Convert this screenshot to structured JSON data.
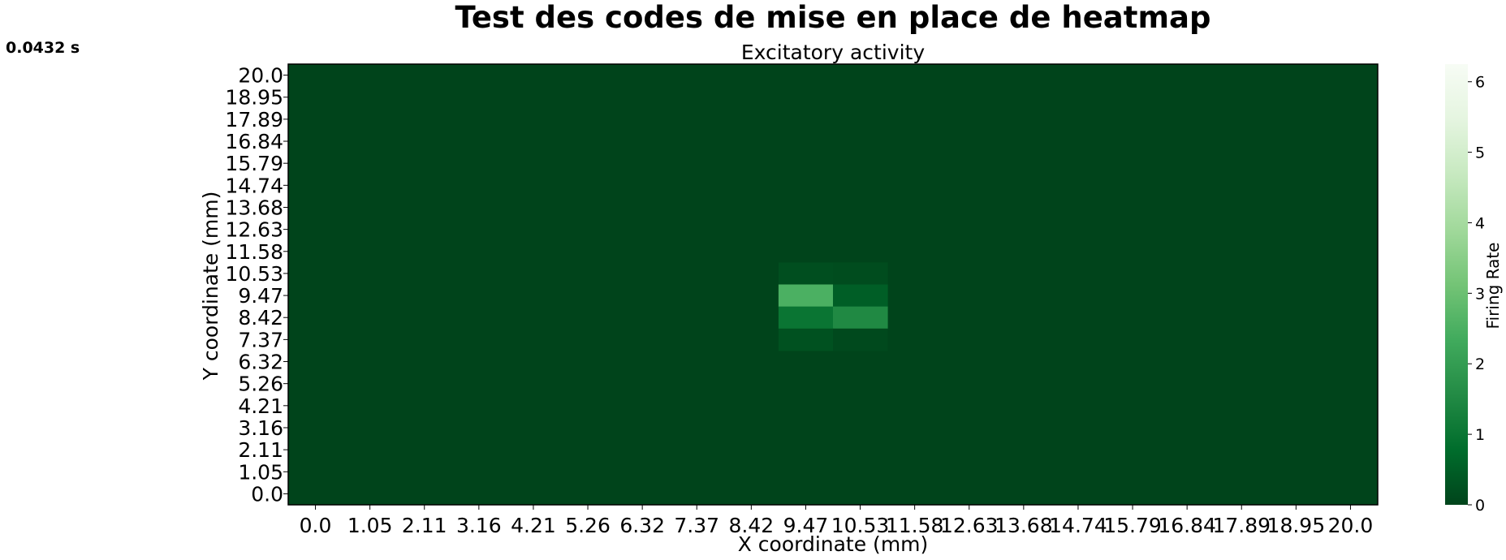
{
  "figure": {
    "title": "Test des codes de mise en place de heatmap",
    "timestamp": "0.0432 s"
  },
  "chart_data": {
    "type": "heatmap",
    "title": "Excitatory activity",
    "xlabel": "X coordinate (mm)",
    "ylabel": "Y coordinate (mm)",
    "x_ticks": [
      "0.0",
      "1.05",
      "2.11",
      "3.16",
      "4.21",
      "5.26",
      "6.32",
      "7.37",
      "8.42",
      "9.47",
      "10.53",
      "11.58",
      "12.63",
      "13.68",
      "14.74",
      "15.79",
      "16.84",
      "17.89",
      "18.95",
      "20.0"
    ],
    "y_ticks": [
      "0.0",
      "1.05",
      "2.11",
      "3.16",
      "4.21",
      "5.26",
      "6.32",
      "7.37",
      "8.42",
      "9.47",
      "10.53",
      "11.58",
      "12.63",
      "13.68",
      "14.74",
      "15.79",
      "16.84",
      "17.89",
      "18.95",
      "20.0"
    ],
    "colormap": "Greens_r",
    "vmin": 0,
    "vmax": 6.25,
    "colorbar": {
      "label": "Firing Rate",
      "ticks": [
        "0",
        "1",
        "2",
        "3",
        "4",
        "5",
        "6"
      ],
      "low_color": "#00441b",
      "high_color": "#f7fcf5"
    },
    "background_value": 0,
    "cells": [
      {
        "x": "9.47",
        "y": "10.53",
        "value": 0.2
      },
      {
        "x": "10.53",
        "y": "10.53",
        "value": 0.15
      },
      {
        "x": "9.47",
        "y": "9.47",
        "value": 2.5
      },
      {
        "x": "10.53",
        "y": "9.47",
        "value": 0.5
      },
      {
        "x": "9.47",
        "y": "8.42",
        "value": 1.0
      },
      {
        "x": "10.53",
        "y": "8.42",
        "value": 1.5
      },
      {
        "x": "9.47",
        "y": "7.37",
        "value": 0.25
      },
      {
        "x": "10.53",
        "y": "7.37",
        "value": 0.1
      }
    ]
  }
}
